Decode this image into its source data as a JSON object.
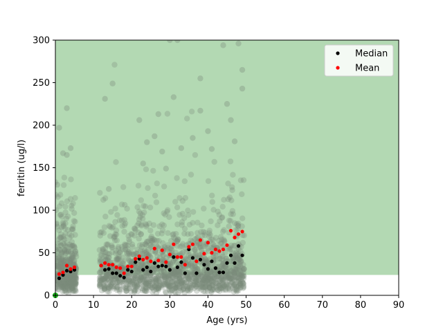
{
  "chart_data": {
    "type": "scatter",
    "xlabel": "Age (yrs)",
    "ylabel": "ferritin (ug/l)",
    "xlim": [
      0,
      90
    ],
    "ylim": [
      0,
      300
    ],
    "xticks": [
      "0",
      "10",
      "20",
      "30",
      "40",
      "50",
      "60",
      "70",
      "80",
      "90"
    ],
    "yticks": [
      "0",
      "50",
      "100",
      "150",
      "200",
      "250",
      "300"
    ],
    "grid": false,
    "legend_position": "top-right",
    "reference_band": {
      "y_from": 24,
      "y_to": 300,
      "color": "#b3d9b3"
    },
    "individual_color": "#7a8a7a",
    "individual_clusters": [
      {
        "age_range": [
          0,
          5.5
        ],
        "n": 420
      },
      {
        "age_range": [
          11.5,
          49.5
        ],
        "n": 1600
      }
    ],
    "individual_outliers": [
      {
        "x": 1,
        "y": 197
      },
      {
        "x": 3,
        "y": 220
      },
      {
        "x": 4,
        "y": 173
      },
      {
        "x": 2,
        "y": 167
      },
      {
        "x": 3,
        "y": 165
      },
      {
        "x": 0.5,
        "y": 130
      },
      {
        "x": 15,
        "y": 249
      },
      {
        "x": 13,
        "y": 231
      },
      {
        "x": 14,
        "y": 125
      },
      {
        "x": 22,
        "y": 206
      },
      {
        "x": 24,
        "y": 180
      },
      {
        "x": 26,
        "y": 187
      },
      {
        "x": 27,
        "y": 213
      },
      {
        "x": 23,
        "y": 155
      },
      {
        "x": 28,
        "y": 169
      },
      {
        "x": 31,
        "y": 233
      },
      {
        "x": 30,
        "y": 300
      },
      {
        "x": 32,
        "y": 300
      },
      {
        "x": 33,
        "y": 173
      },
      {
        "x": 38,
        "y": 255
      },
      {
        "x": 38,
        "y": 217
      },
      {
        "x": 40,
        "y": 193
      },
      {
        "x": 44,
        "y": 294
      },
      {
        "x": 48,
        "y": 296
      },
      {
        "x": 49,
        "y": 265
      },
      {
        "x": 49,
        "y": 243
      },
      {
        "x": 46,
        "y": 206
      },
      {
        "x": 45,
        "y": 225
      },
      {
        "x": 36,
        "y": 185
      },
      {
        "x": 41,
        "y": 172
      },
      {
        "x": 47,
        "y": 181
      },
      {
        "x": 29,
        "y": 149
      }
    ],
    "series": [
      {
        "name": "Median",
        "color": "#000000",
        "points": [
          {
            "x": 1,
            "y": 20
          },
          {
            "x": 2,
            "y": 24
          },
          {
            "x": 3,
            "y": 29
          },
          {
            "x": 4,
            "y": 28
          },
          {
            "x": 5,
            "y": 30
          },
          {
            "x": 12,
            "y": 35
          },
          {
            "x": 13,
            "y": 30
          },
          {
            "x": 14,
            "y": 31
          },
          {
            "x": 15,
            "y": 26
          },
          {
            "x": 16,
            "y": 26
          },
          {
            "x": 17,
            "y": 23
          },
          {
            "x": 18,
            "y": 21
          },
          {
            "x": 19,
            "y": 30
          },
          {
            "x": 20,
            "y": 28
          },
          {
            "x": 21,
            "y": 39
          },
          {
            "x": 22,
            "y": 43
          },
          {
            "x": 23,
            "y": 30
          },
          {
            "x": 24,
            "y": 33
          },
          {
            "x": 25,
            "y": 28
          },
          {
            "x": 26,
            "y": 38
          },
          {
            "x": 27,
            "y": 34
          },
          {
            "x": 28,
            "y": 35
          },
          {
            "x": 29,
            "y": 34
          },
          {
            "x": 30,
            "y": 30
          },
          {
            "x": 31,
            "y": 45
          },
          {
            "x": 32,
            "y": 33
          },
          {
            "x": 33,
            "y": 39
          },
          {
            "x": 34,
            "y": 26
          },
          {
            "x": 35,
            "y": 54
          },
          {
            "x": 36,
            "y": 44
          },
          {
            "x": 37,
            "y": 26
          },
          {
            "x": 38,
            "y": 42
          },
          {
            "x": 39,
            "y": 36
          },
          {
            "x": 40,
            "y": 31
          },
          {
            "x": 41,
            "y": 40
          },
          {
            "x": 42,
            "y": 32
          },
          {
            "x": 43,
            "y": 27
          },
          {
            "x": 44,
            "y": 27
          },
          {
            "x": 45,
            "y": 38
          },
          {
            "x": 46,
            "y": 47
          },
          {
            "x": 47,
            "y": 38
          },
          {
            "x": 48,
            "y": 58
          },
          {
            "x": 49,
            "y": 47
          }
        ]
      },
      {
        "name": "Mean",
        "color": "#ff0000",
        "points": [
          {
            "x": 1,
            "y": 25
          },
          {
            "x": 2,
            "y": 27
          },
          {
            "x": 3,
            "y": 35
          },
          {
            "x": 4,
            "y": 31
          },
          {
            "x": 5,
            "y": 33
          },
          {
            "x": 12,
            "y": 35
          },
          {
            "x": 13,
            "y": 38
          },
          {
            "x": 14,
            "y": 36
          },
          {
            "x": 15,
            "y": 36
          },
          {
            "x": 16,
            "y": 33
          },
          {
            "x": 17,
            "y": 32
          },
          {
            "x": 18,
            "y": 26
          },
          {
            "x": 19,
            "y": 34
          },
          {
            "x": 20,
            "y": 34
          },
          {
            "x": 21,
            "y": 43
          },
          {
            "x": 22,
            "y": 46
          },
          {
            "x": 23,
            "y": 42
          },
          {
            "x": 24,
            "y": 44
          },
          {
            "x": 25,
            "y": 40
          },
          {
            "x": 26,
            "y": 55
          },
          {
            "x": 27,
            "y": 41
          },
          {
            "x": 28,
            "y": 53
          },
          {
            "x": 29,
            "y": 39
          },
          {
            "x": 30,
            "y": 48
          },
          {
            "x": 31,
            "y": 60
          },
          {
            "x": 32,
            "y": 45
          },
          {
            "x": 33,
            "y": 45
          },
          {
            "x": 34,
            "y": 36
          },
          {
            "x": 35,
            "y": 57
          },
          {
            "x": 36,
            "y": 60
          },
          {
            "x": 37,
            "y": 40
          },
          {
            "x": 38,
            "y": 65
          },
          {
            "x": 39,
            "y": 49
          },
          {
            "x": 40,
            "y": 62
          },
          {
            "x": 41,
            "y": 50
          },
          {
            "x": 42,
            "y": 54
          },
          {
            "x": 43,
            "y": 52
          },
          {
            "x": 44,
            "y": 54
          },
          {
            "x": 45,
            "y": 59
          },
          {
            "x": 46,
            "y": 76
          },
          {
            "x": 47,
            "y": 68
          },
          {
            "x": 48,
            "y": 72
          },
          {
            "x": 49,
            "y": 75
          }
        ]
      }
    ],
    "origin_marker": {
      "x": 0,
      "y": 0,
      "color": "#00aa00"
    }
  }
}
